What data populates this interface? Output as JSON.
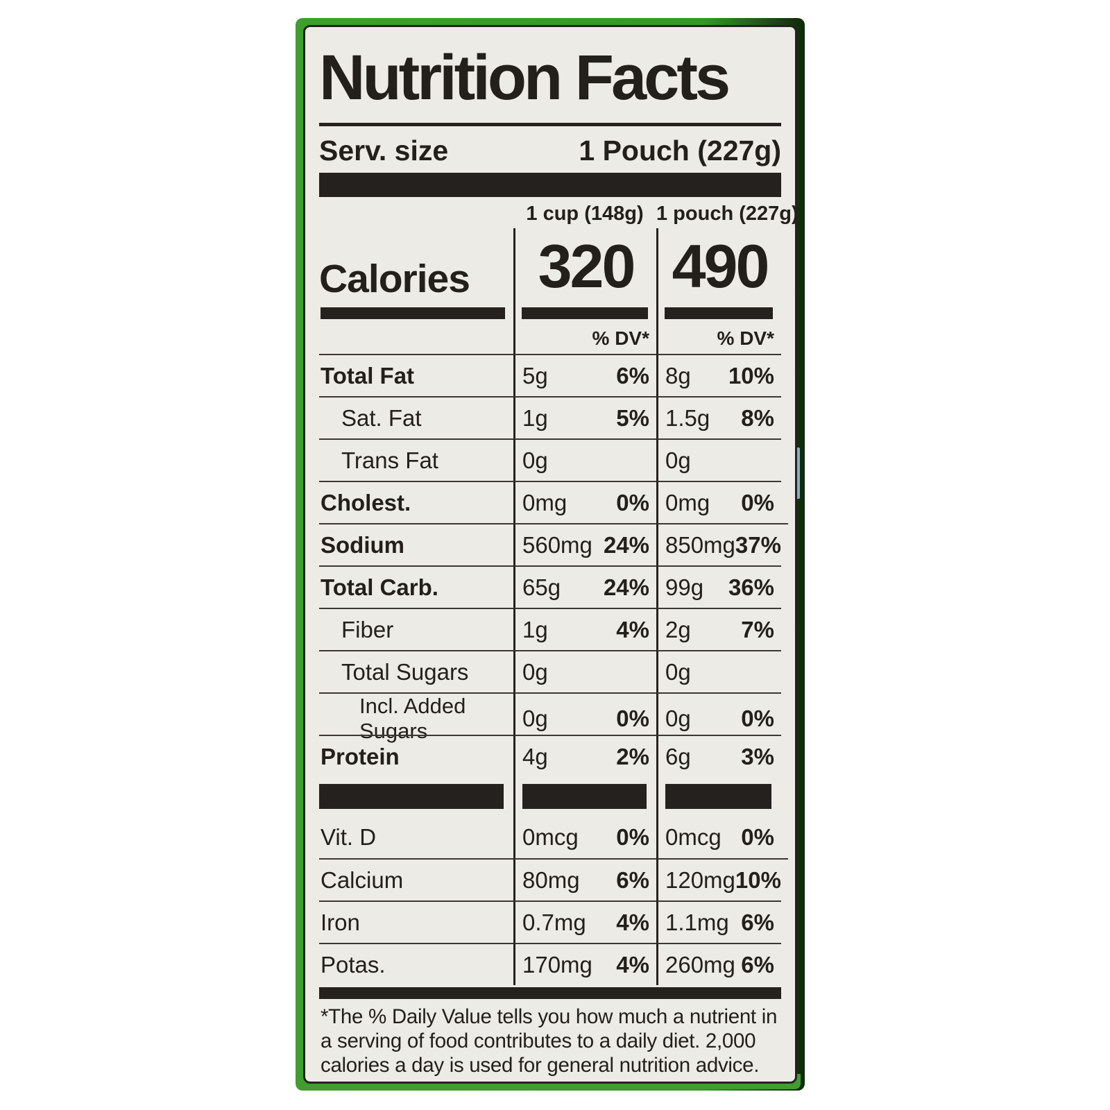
{
  "label": {
    "title": "Nutrition Facts",
    "serving": {
      "label": "Serv. size",
      "value": "1 Pouch (227g)"
    },
    "columns": {
      "cup": "1 cup (148g)",
      "pouch": "1 pouch (227g)"
    },
    "calories": {
      "label": "Calories",
      "cup": "320",
      "pouch": "490"
    },
    "dv_header": "% DV*",
    "nutrients": [
      {
        "name": "Total Fat",
        "cup_amount": "5g",
        "cup_dv": "6%",
        "pouch_amount": "8g",
        "pouch_dv": "10%"
      },
      {
        "name": "Sat. Fat",
        "cup_amount": "1g",
        "cup_dv": "5%",
        "pouch_amount": "1.5g",
        "pouch_dv": "8%"
      },
      {
        "name": "Trans Fat",
        "cup_amount": "0g",
        "cup_dv": "",
        "pouch_amount": "0g",
        "pouch_dv": ""
      },
      {
        "name": "Cholest.",
        "cup_amount": "0mg",
        "cup_dv": "0%",
        "pouch_amount": "0mg",
        "pouch_dv": "0%"
      },
      {
        "name": "Sodium",
        "cup_amount": "560mg",
        "cup_dv": "24%",
        "pouch_amount": "850mg",
        "pouch_dv": "37%"
      },
      {
        "name": "Total Carb.",
        "cup_amount": "65g",
        "cup_dv": "24%",
        "pouch_amount": "99g",
        "pouch_dv": "36%"
      },
      {
        "name": "Fiber",
        "cup_amount": "1g",
        "cup_dv": "4%",
        "pouch_amount": "2g",
        "pouch_dv": "7%"
      },
      {
        "name": "Total Sugars",
        "cup_amount": "0g",
        "cup_dv": "",
        "pouch_amount": "0g",
        "pouch_dv": ""
      },
      {
        "name": "Incl. Added Sugars",
        "cup_amount": "0g",
        "cup_dv": "0%",
        "pouch_amount": "0g",
        "pouch_dv": "0%"
      },
      {
        "name": "Protein",
        "cup_amount": "4g",
        "cup_dv": "2%",
        "pouch_amount": "6g",
        "pouch_dv": "3%"
      }
    ],
    "minerals": [
      {
        "name": "Vit. D",
        "cup_amount": "0mcg",
        "cup_dv": "0%",
        "pouch_amount": "0mcg",
        "pouch_dv": "0%"
      },
      {
        "name": "Calcium",
        "cup_amount": "80mg",
        "cup_dv": "6%",
        "pouch_amount": "120mg",
        "pouch_dv": "10%"
      },
      {
        "name": "Iron",
        "cup_amount": "0.7mg",
        "cup_dv": "4%",
        "pouch_amount": "1.1mg",
        "pouch_dv": "6%"
      },
      {
        "name": "Potas.",
        "cup_amount": "170mg",
        "cup_dv": "4%",
        "pouch_amount": "260mg",
        "pouch_dv": "6%"
      }
    ],
    "footnote": "*The % Daily Value tells you how much a nutrient in a serving of food contributes to a daily diet. 2,000 calories a day is used for general nutrition advice."
  },
  "colors": {
    "label_background": "#edebe6",
    "ink": "#24211e",
    "package_green": "#3f9e2e",
    "package_edge_dark": "#0e2a0a",
    "blue_sliver": "#87aecd"
  }
}
